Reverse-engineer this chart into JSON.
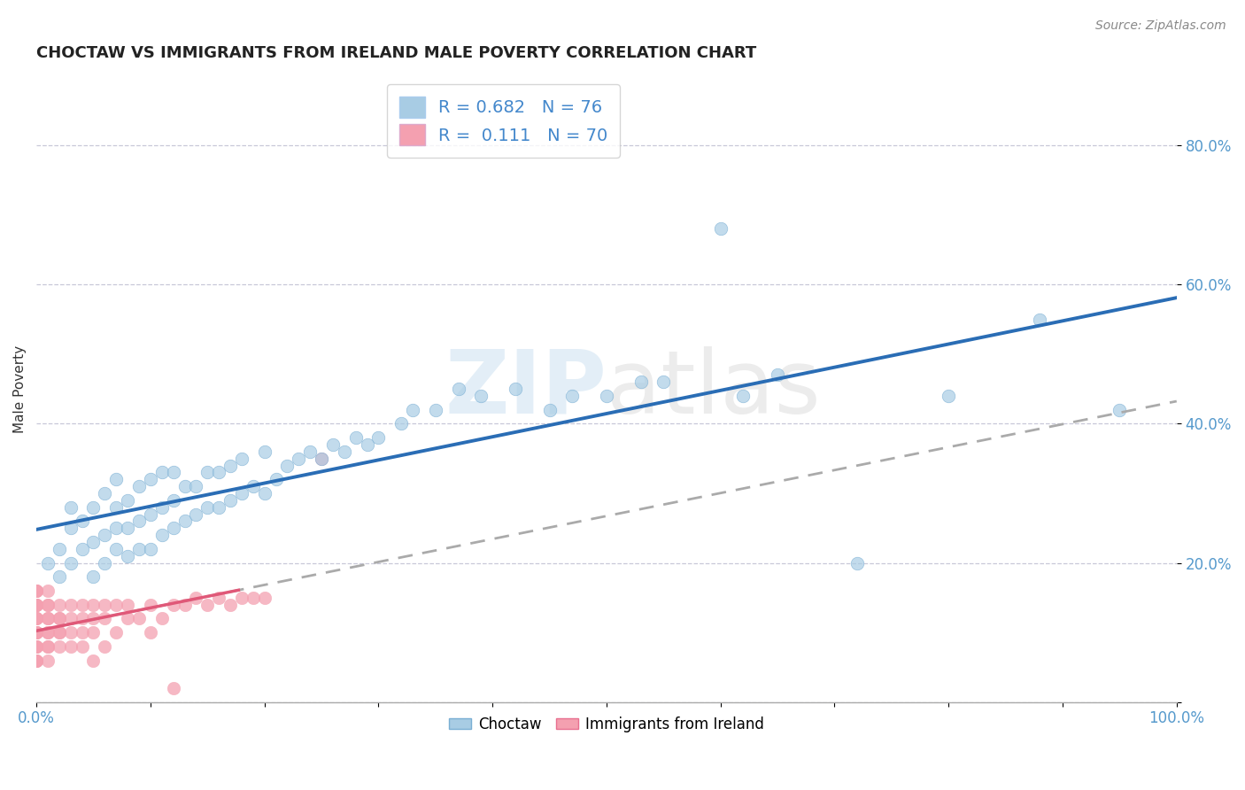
{
  "title": "CHOCTAW VS IMMIGRANTS FROM IRELAND MALE POVERTY CORRELATION CHART",
  "source": "Source: ZipAtlas.com",
  "ylabel": "Male Poverty",
  "choctaw_color": "#a8cce4",
  "choctaw_edge": "#7aafd4",
  "choctaw_line_color": "#2a6db5",
  "ireland_color": "#f4a0b0",
  "ireland_edge": "#e87090",
  "ireland_line_color": "#e05878",
  "ireland_dash_color": "#cccccc",
  "choctaw_R": 0.682,
  "choctaw_N": 76,
  "ireland_R": 0.111,
  "ireland_N": 70,
  "xlim": [
    0.0,
    1.0
  ],
  "ylim": [
    0.0,
    0.9
  ],
  "yticks": [
    0.0,
    0.2,
    0.4,
    0.6,
    0.8
  ],
  "ytick_labels": [
    "",
    "20.0%",
    "40.0%",
    "60.0%",
    "80.0%"
  ],
  "xticks": [
    0.0,
    0.1,
    0.2,
    0.3,
    0.4,
    0.5,
    0.6,
    0.7,
    0.8,
    0.9,
    1.0
  ],
  "xtick_labels": [
    "0.0%",
    "",
    "",
    "",
    "",
    "",
    "",
    "",
    "",
    "",
    "100.0%"
  ],
  "grid_color": "#c8c8d8",
  "bg_color": "#ffffff",
  "title_fontsize": 13,
  "tick_fontsize": 12,
  "axis_tick_color": "#5599cc",
  "legend_text_color": "#4488cc",
  "legend_N_color": "#2255aa"
}
